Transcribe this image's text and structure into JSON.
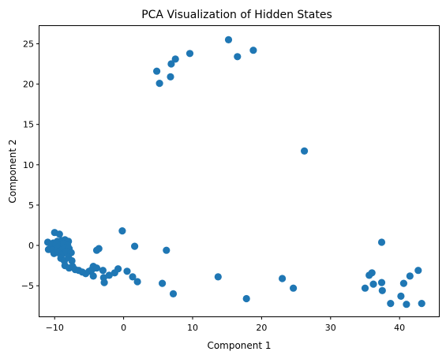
{
  "chart_data": {
    "type": "scatter",
    "title": "PCA Visualization of Hidden States",
    "xlabel": "Component 1",
    "ylabel": "Component 2",
    "xlim": [
      -12.2,
      45.7
    ],
    "ylim": [
      -8.8,
      27.2
    ],
    "xticks": [
      -10,
      0,
      10,
      20,
      30,
      40
    ],
    "yticks": [
      -5,
      0,
      5,
      10,
      15,
      20,
      25
    ],
    "grid": false,
    "point_color": "#1f77b4",
    "points": [
      [
        15.2,
        25.5
      ],
      [
        18.8,
        24.2
      ],
      [
        9.6,
        23.8
      ],
      [
        16.5,
        23.4
      ],
      [
        7.5,
        23.1
      ],
      [
        6.9,
        22.5
      ],
      [
        4.8,
        21.6
      ],
      [
        6.8,
        20.9
      ],
      [
        5.2,
        20.1
      ],
      [
        26.2,
        11.7
      ],
      [
        -10.0,
        1.6
      ],
      [
        -9.3,
        1.4
      ],
      [
        -11.0,
        0.4
      ],
      [
        -10.2,
        0.3
      ],
      [
        -9.6,
        0.5
      ],
      [
        -9.0,
        0.6
      ],
      [
        -8.5,
        0.7
      ],
      [
        -8.0,
        0.5
      ],
      [
        -10.5,
        0.0
      ],
      [
        -9.8,
        0.1
      ],
      [
        -9.2,
        0.0
      ],
      [
        -8.7,
        0.2
      ],
      [
        -8.1,
        0.0
      ],
      [
        -10.9,
        -0.5
      ],
      [
        -10.3,
        -0.6
      ],
      [
        -9.6,
        -0.4
      ],
      [
        -9.0,
        -0.6
      ],
      [
        -8.4,
        -0.3
      ],
      [
        -7.9,
        -0.4
      ],
      [
        -10.1,
        -1.0
      ],
      [
        -9.5,
        -0.9
      ],
      [
        -8.9,
        -1.1
      ],
      [
        -8.3,
        -0.8
      ],
      [
        -7.6,
        -0.9
      ],
      [
        -9.1,
        -1.6
      ],
      [
        -8.6,
        -1.9
      ],
      [
        -8.0,
        -1.5
      ],
      [
        -7.5,
        -1.9
      ],
      [
        -8.5,
        -2.5
      ],
      [
        -7.9,
        -2.8
      ],
      [
        -7.4,
        -2.6
      ],
      [
        -7.0,
        -3.0
      ],
      [
        -6.5,
        -3.1
      ],
      [
        -6.0,
        -3.3
      ],
      [
        -5.5,
        -3.5
      ],
      [
        -5.0,
        -3.2
      ],
      [
        -4.6,
        -3.0
      ],
      [
        -4.4,
        -2.6
      ],
      [
        -3.9,
        -2.8
      ],
      [
        -4.4,
        -3.8
      ],
      [
        -3.9,
        -0.6
      ],
      [
        -3.6,
        -0.4
      ],
      [
        -3.0,
        -3.1
      ],
      [
        -2.9,
        -4.0
      ],
      [
        -2.8,
        -4.6
      ],
      [
        -2.1,
        -3.7
      ],
      [
        -1.3,
        -3.4
      ],
      [
        -0.8,
        -2.9
      ],
      [
        0.5,
        -3.2
      ],
      [
        1.3,
        -3.9
      ],
      [
        2.0,
        -4.5
      ],
      [
        -0.2,
        1.8
      ],
      [
        1.6,
        -0.1
      ],
      [
        6.2,
        -0.6
      ],
      [
        5.6,
        -4.7
      ],
      [
        7.2,
        -6.0
      ],
      [
        13.7,
        -3.9
      ],
      [
        17.8,
        -6.6
      ],
      [
        23.0,
        -4.1
      ],
      [
        24.6,
        -5.3
      ],
      [
        35.0,
        -5.3
      ],
      [
        35.6,
        -3.7
      ],
      [
        36.0,
        -3.4
      ],
      [
        36.2,
        -4.8
      ],
      [
        37.4,
        -4.6
      ],
      [
        37.5,
        -5.6
      ],
      [
        37.4,
        0.4
      ],
      [
        38.7,
        -7.2
      ],
      [
        40.2,
        -6.3
      ],
      [
        40.6,
        -4.7
      ],
      [
        41.0,
        -7.3
      ],
      [
        41.5,
        -3.8
      ],
      [
        42.7,
        -3.1
      ],
      [
        43.2,
        -7.2
      ]
    ]
  }
}
